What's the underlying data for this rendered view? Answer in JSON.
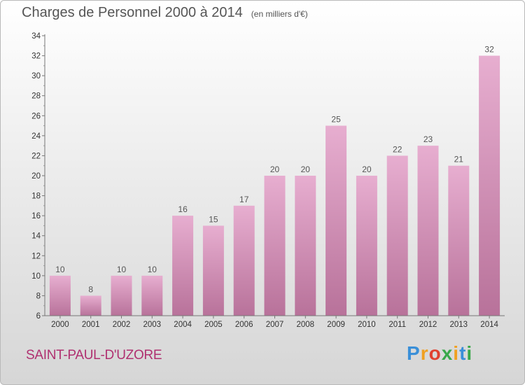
{
  "title": "Charges de Personnel 2000 à 2014",
  "subtitle": "(en milliers d'€)",
  "place_name": "SAINT-PAUL-D'UZORE",
  "logo": {
    "letters": [
      "P",
      "r",
      "o",
      "x",
      "i",
      "t",
      "i"
    ],
    "colors": [
      "#3a8fd8",
      "#f0a020",
      "#e04030",
      "#39a84a",
      "#f0a020",
      "#3a8fd8",
      "#39a84a"
    ]
  },
  "colors": {
    "bar_top": "#e7aed0",
    "bar_bottom": "#b8729a",
    "text": "#555555",
    "place": "#b03070"
  },
  "chart_data": {
    "type": "bar",
    "categories": [
      "2000",
      "2001",
      "2002",
      "2003",
      "2004",
      "2005",
      "2006",
      "2007",
      "2008",
      "2009",
      "2010",
      "2011",
      "2012",
      "2013",
      "2014"
    ],
    "values": [
      10,
      8,
      10,
      10,
      16,
      15,
      17,
      20,
      20,
      25,
      20,
      22,
      23,
      21,
      32
    ],
    "data_labels": [
      "10",
      "8",
      "10",
      "10",
      "16",
      "15",
      "17",
      "20",
      "20",
      "25",
      "20",
      "22",
      "23",
      "21",
      "32"
    ],
    "y_ticks": [
      "6",
      "8",
      "10",
      "12",
      "14",
      "16",
      "18",
      "20",
      "22",
      "24",
      "26",
      "28",
      "30",
      "32",
      "34"
    ],
    "ylim": [
      6,
      34
    ],
    "y_tick_step": 2,
    "grid": false,
    "legend": "none"
  }
}
